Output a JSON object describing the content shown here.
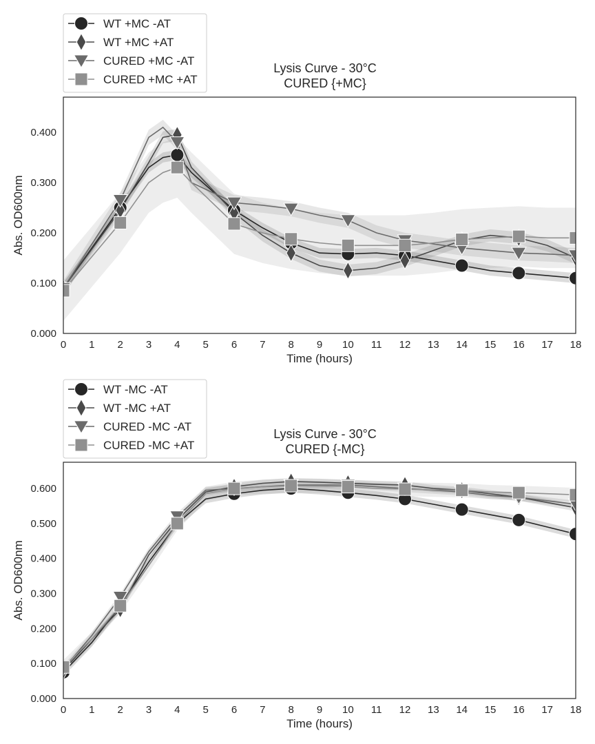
{
  "chart_data": [
    {
      "type": "line",
      "title": "Lysis Curve - 30°C\nCURED {+MC}",
      "xlabel": "Time (hours)",
      "ylabel": "Abs. OD600nm",
      "xlim": [
        0,
        18
      ],
      "ylim": [
        0,
        0.47
      ],
      "xticks": [
        0,
        1,
        2,
        3,
        4,
        5,
        6,
        7,
        8,
        9,
        10,
        11,
        12,
        13,
        14,
        15,
        16,
        17,
        18
      ],
      "yticks": [
        0,
        0.1,
        0.2,
        0.3,
        0.4
      ],
      "yticklabels": [
        "0.000",
        "0.100",
        "0.200",
        "0.300",
        "0.400"
      ],
      "grid": false,
      "legend_position": "above-top-left",
      "series": [
        {
          "name": "WT +MC -AT",
          "marker": "circle",
          "color": "#262626",
          "x": [
            0,
            2,
            3,
            3.5,
            4,
            4.5,
            6,
            7,
            8,
            9,
            10,
            11,
            12,
            13,
            14,
            15,
            16,
            17,
            18
          ],
          "y": [
            0.09,
            0.25,
            0.33,
            0.35,
            0.355,
            0.32,
            0.245,
            0.21,
            0.18,
            0.16,
            0.158,
            0.16,
            0.155,
            0.145,
            0.135,
            0.125,
            0.12,
            0.115,
            0.11
          ],
          "band": 0.01
        },
        {
          "name": "WT +MC +AT",
          "marker": "diamond",
          "color": "#4a4a4a",
          "x": [
            0,
            2,
            3,
            3.5,
            4,
            4.5,
            6,
            7,
            8,
            9,
            10,
            11,
            12,
            13,
            14,
            15,
            16,
            17,
            18
          ],
          "y": [
            0.09,
            0.245,
            0.34,
            0.39,
            0.395,
            0.33,
            0.24,
            0.195,
            0.16,
            0.135,
            0.125,
            0.13,
            0.145,
            0.165,
            0.185,
            0.195,
            0.19,
            0.175,
            0.15
          ],
          "band": 0.012
        },
        {
          "name": "CURED +MC -AT",
          "marker": "triangle-down",
          "color": "#6a6a6a",
          "x": [
            0,
            2,
            3,
            3.5,
            4,
            4.5,
            6,
            7,
            8,
            9,
            10,
            11,
            12,
            13,
            14,
            15,
            16,
            17,
            18
          ],
          "y": [
            0.09,
            0.265,
            0.39,
            0.41,
            0.38,
            0.3,
            0.26,
            0.255,
            0.248,
            0.235,
            0.225,
            0.2,
            0.185,
            0.178,
            0.17,
            0.165,
            0.16,
            0.158,
            0.155
          ],
          "band": 0.015
        },
        {
          "name": "CURED +MC +AT",
          "marker": "square",
          "color": "#909090",
          "x": [
            0,
            2,
            3,
            3.5,
            4,
            4.5,
            6,
            7,
            8,
            9,
            10,
            11,
            12,
            13,
            14,
            15,
            16,
            17,
            18
          ],
          "y": [
            0.085,
            0.22,
            0.3,
            0.32,
            0.33,
            0.3,
            0.218,
            0.2,
            0.188,
            0.18,
            0.175,
            0.175,
            0.175,
            0.18,
            0.187,
            0.19,
            0.193,
            0.19,
            0.19
          ],
          "band": 0.06
        }
      ]
    },
    {
      "type": "line",
      "title": "Lysis Curve - 30°C\nCURED {-MC}",
      "xlabel": "Time (hours)",
      "ylabel": "Abs. OD600nm",
      "xlim": [
        0,
        18
      ],
      "ylim": [
        0,
        0.675
      ],
      "xticks": [
        0,
        1,
        2,
        3,
        4,
        5,
        6,
        7,
        8,
        9,
        10,
        11,
        12,
        13,
        14,
        15,
        16,
        17,
        18
      ],
      "yticks": [
        0,
        0.1,
        0.2,
        0.3,
        0.4,
        0.5,
        0.6
      ],
      "yticklabels": [
        "0.000",
        "0.100",
        "0.200",
        "0.300",
        "0.400",
        "0.500",
        "0.600"
      ],
      "grid": false,
      "legend_position": "above-top-left",
      "series": [
        {
          "name": "WT -MC -AT",
          "marker": "circle",
          "color": "#262626",
          "x": [
            0,
            1,
            2,
            3,
            4,
            5,
            6,
            7,
            8,
            9,
            10,
            11,
            12,
            13,
            14,
            15,
            16,
            17,
            18
          ],
          "y": [
            0.075,
            0.16,
            0.265,
            0.39,
            0.5,
            0.57,
            0.585,
            0.595,
            0.6,
            0.595,
            0.588,
            0.58,
            0.57,
            0.555,
            0.54,
            0.525,
            0.51,
            0.49,
            0.47
          ],
          "band": 0.012
        },
        {
          "name": "WT -MC +AT",
          "marker": "diamond",
          "color": "#4a4a4a",
          "x": [
            0,
            1,
            2,
            3,
            4,
            5,
            6,
            7,
            8,
            9,
            10,
            11,
            12,
            13,
            14,
            15,
            16,
            17,
            18
          ],
          "y": [
            0.08,
            0.17,
            0.255,
            0.41,
            0.51,
            0.59,
            0.605,
            0.615,
            0.62,
            0.618,
            0.615,
            0.612,
            0.61,
            0.6,
            0.595,
            0.585,
            0.575,
            0.56,
            0.545
          ],
          "band": 0.01
        },
        {
          "name": "CURED -MC -AT",
          "marker": "triangle-down",
          "color": "#6a6a6a",
          "x": [
            0,
            1,
            2,
            3,
            4,
            5,
            6,
            7,
            8,
            9,
            10,
            11,
            12,
            13,
            14,
            15,
            16,
            17,
            18
          ],
          "y": [
            0.085,
            0.18,
            0.29,
            0.42,
            0.52,
            0.595,
            0.6,
            0.605,
            0.61,
            0.61,
            0.61,
            0.605,
            0.6,
            0.595,
            0.59,
            0.58,
            0.575,
            0.565,
            0.555
          ],
          "band": 0.01
        },
        {
          "name": "CURED -MC +AT",
          "marker": "square",
          "color": "#909090",
          "x": [
            0,
            1,
            2,
            3,
            4,
            5,
            6,
            7,
            8,
            9,
            10,
            11,
            12,
            13,
            14,
            15,
            16,
            17,
            18
          ],
          "y": [
            0.09,
            0.17,
            0.265,
            0.38,
            0.5,
            0.585,
            0.6,
            0.605,
            0.608,
            0.607,
            0.605,
            0.6,
            0.598,
            0.596,
            0.595,
            0.59,
            0.588,
            0.585,
            0.582
          ],
          "band": 0.02
        }
      ]
    }
  ]
}
